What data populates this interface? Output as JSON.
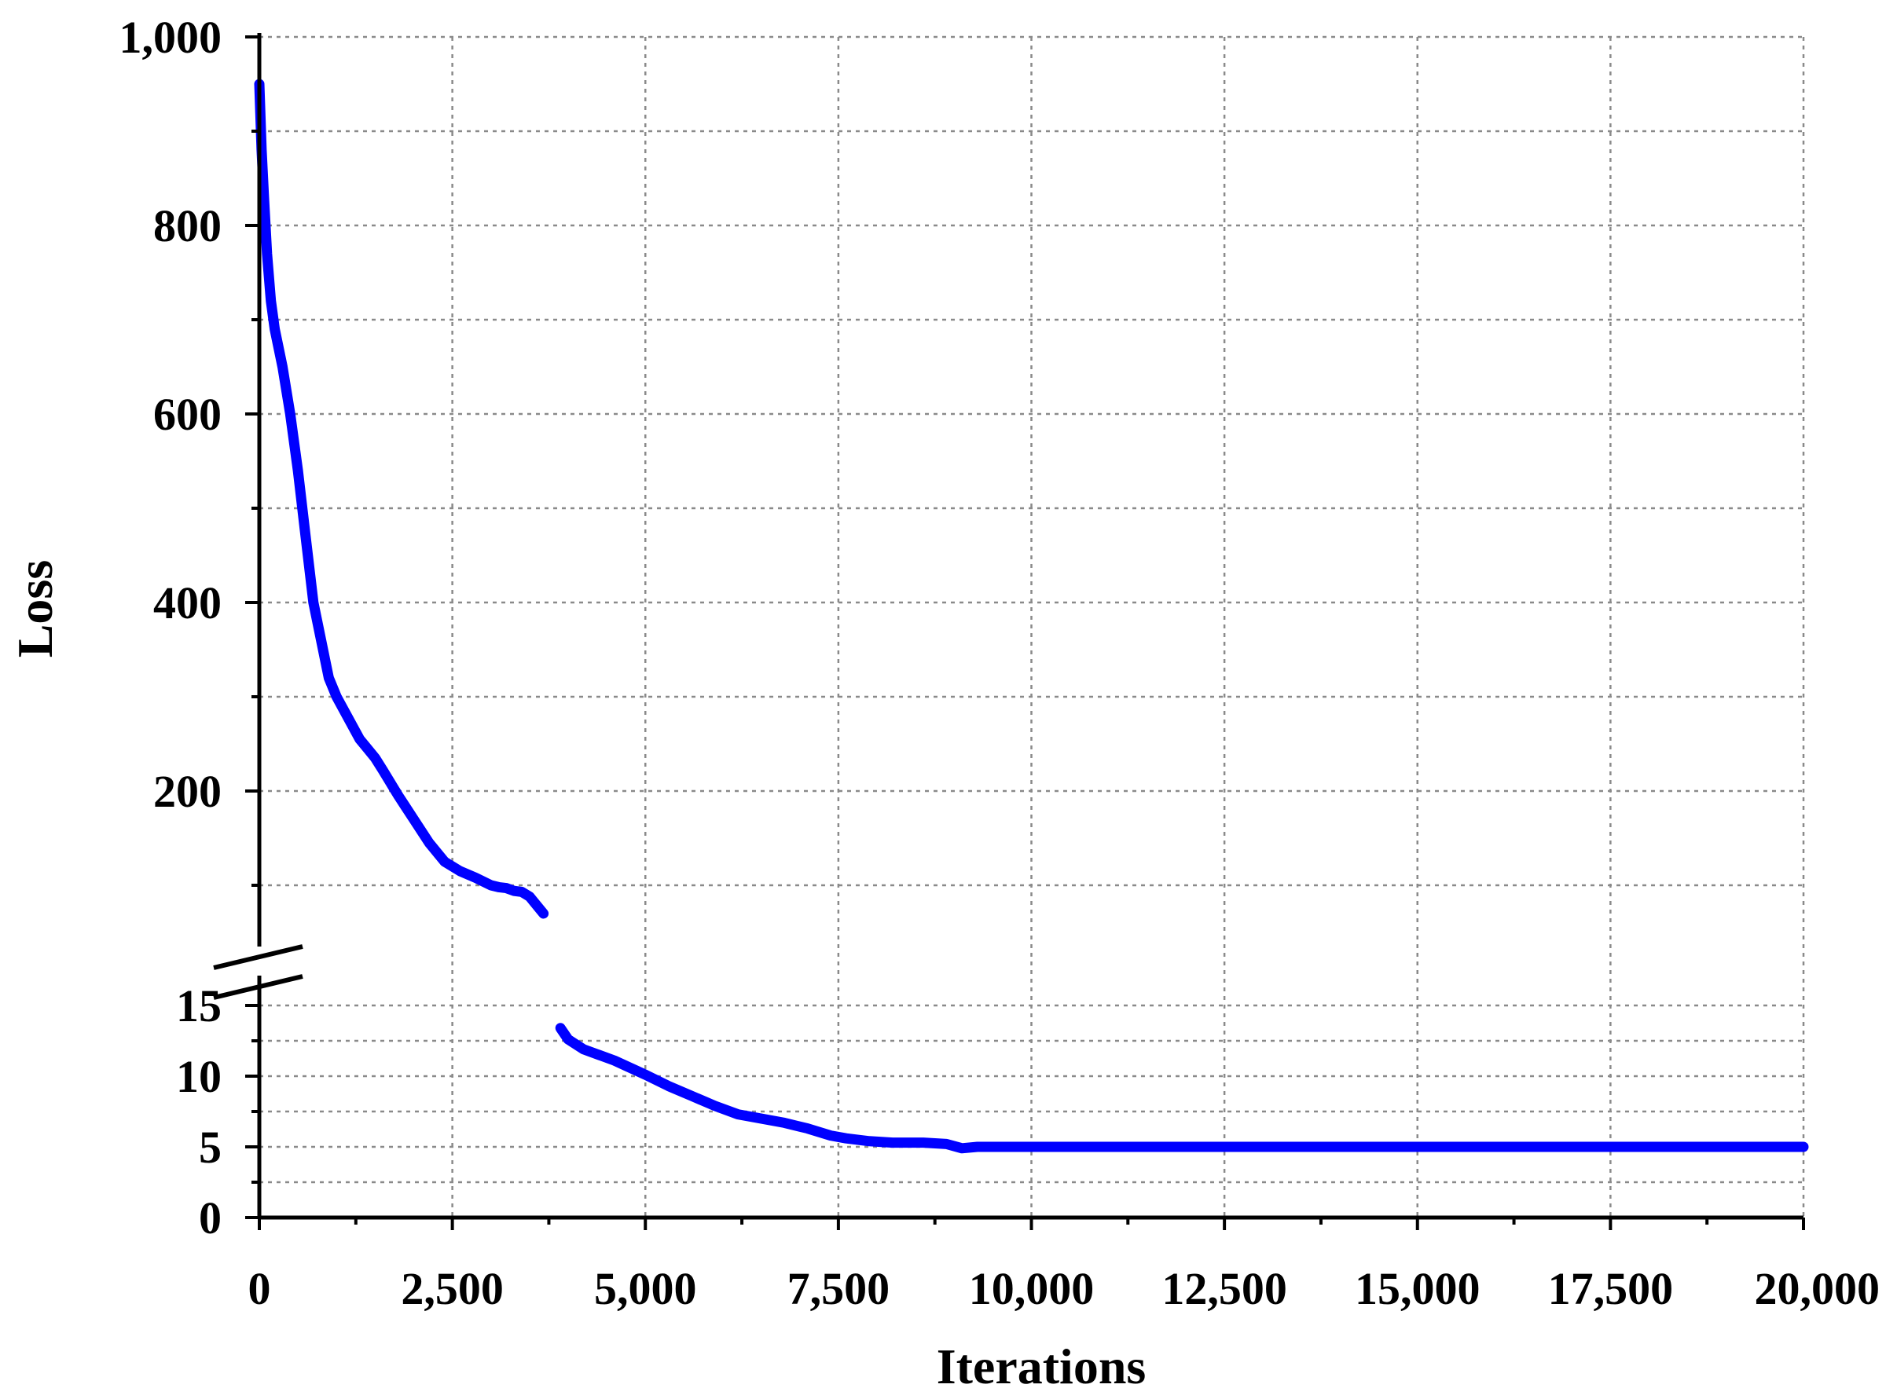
{
  "chart_data": {
    "type": "line",
    "title": "",
    "xlabel": "Iterations",
    "ylabel": "Loss",
    "xlim": [
      0,
      20000
    ],
    "x_ticks": [
      0,
      2500,
      5000,
      7500,
      10000,
      12500,
      15000,
      17500,
      20000
    ],
    "x_tick_labels": [
      "0",
      "2,500",
      "5,000",
      "7,500",
      "10,000",
      "12,500",
      "15,000",
      "17,500",
      "20,000"
    ],
    "y_axis_broken": true,
    "y_lower_segment": {
      "ylim": [
        0,
        16
      ],
      "ticks": [
        0,
        5,
        10,
        15
      ],
      "tick_labels": [
        "0",
        "5",
        "10",
        "15"
      ]
    },
    "y_upper_segment": {
      "ylim": [
        60,
        1000
      ],
      "ticks": [
        200,
        400,
        600,
        800,
        1000
      ],
      "tick_labels": [
        "200",
        "400",
        "600",
        "800",
        "1,000"
      ]
    },
    "grid": true,
    "line_color": "#0000ff",
    "series": [
      {
        "segment": "upper",
        "x": [
          0,
          30,
          60,
          100,
          150,
          200,
          300,
          400,
          500,
          600,
          700,
          800,
          900,
          1000,
          1100,
          1200,
          1300,
          1400,
          1500,
          1600,
          1800,
          2000,
          2200,
          2400,
          2600,
          2800,
          3000,
          3100,
          3200,
          3300,
          3400,
          3500,
          3600,
          3680
        ],
        "y": [
          950,
          880,
          830,
          770,
          720,
          690,
          650,
          600,
          540,
          470,
          400,
          360,
          320,
          300,
          285,
          270,
          255,
          245,
          235,
          222,
          195,
          170,
          145,
          125,
          115,
          108,
          100,
          98,
          97,
          94,
          93,
          88,
          78,
          70
        ]
      },
      {
        "segment": "lower",
        "x": [
          3900,
          4000,
          4200,
          4400,
          4600,
          4800,
          5000,
          5300,
          5600,
          5900,
          6200,
          6500,
          6800,
          7100,
          7400,
          7600,
          7900,
          8200,
          8600,
          8900,
          9100,
          9300,
          9600,
          10000,
          12000,
          15000,
          17500,
          20000
        ],
        "y": [
          13.4,
          12.6,
          11.9,
          11.5,
          11.1,
          10.6,
          10.1,
          9.3,
          8.6,
          7.9,
          7.3,
          7.0,
          6.7,
          6.3,
          5.8,
          5.6,
          5.4,
          5.3,
          5.3,
          5.2,
          4.9,
          5.0,
          5.0,
          5.0,
          5.0,
          5.0,
          5.0,
          5.0
        ]
      }
    ]
  }
}
